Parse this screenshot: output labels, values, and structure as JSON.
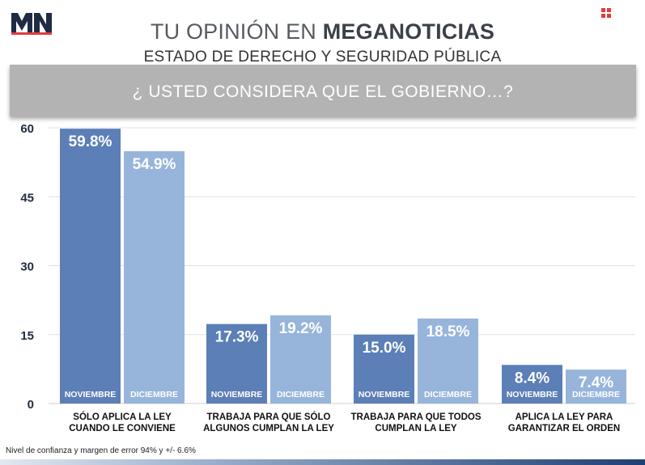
{
  "header": {
    "logo_text": "MN",
    "title_light": "TU OPINIÓN EN ",
    "title_bold": "MEGANOTICIAS",
    "subtitle": "ESTADO DE DERECHO Y SEGURIDAD PÚBLICA",
    "question": "¿ USTED CONSIDERA QUE EL GOBIERNO…?"
  },
  "colors": {
    "noviembre": "#5b7fb6",
    "diciembre": "#97b5db",
    "logo_red": "#e23b3b",
    "logo_navy": "#1f2b44",
    "grid": "#e0e0e0",
    "axis_text": "#222b40"
  },
  "chart_data": {
    "type": "bar",
    "categories": [
      "SÓLO APLICA LA LEY\nCUANDO LE CONVIENE",
      "TRABAJA PARA QUE SÓLO\nALGUNOS CUMPLAN LA LEY",
      "TRABAJA PARA QUE TODOS\nCUMPLAN LA LEY",
      "APLICA LA LEY PARA\nGARANTIZAR EL ORDEN"
    ],
    "series": [
      {
        "name": "NOVIEMBRE",
        "values": [
          59.8,
          17.3,
          15.0,
          8.4
        ],
        "labels": [
          "59.8%",
          "17.3%",
          "15.0%",
          "8.4%"
        ]
      },
      {
        "name": "DICIEMBRE",
        "values": [
          54.9,
          19.2,
          18.5,
          7.4
        ],
        "labels": [
          "54.9%",
          "19.2%",
          "18.5%",
          "7.4%"
        ]
      }
    ],
    "yticks": [
      "0",
      "15",
      "30",
      "45",
      "60"
    ],
    "ylim": [
      0,
      60
    ],
    "grid": true
  },
  "footnote": "Nivel de confianza y margen de error 94% y +/- 6.6%"
}
